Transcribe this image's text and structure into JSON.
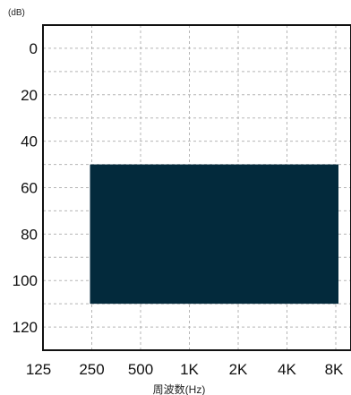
{
  "chart_data": {
    "type": "area",
    "ylabel": "(dB)",
    "xlabel": "周波数(Hz)",
    "categories": [
      "125",
      "250",
      "500",
      "1K",
      "2K",
      "4K",
      "8K"
    ],
    "y_ticks": [
      "0",
      "20",
      "40",
      "60",
      "80",
      "100",
      "120"
    ],
    "ylim": [
      -10,
      130
    ],
    "y_inverted": true,
    "grid": true,
    "regions": [
      {
        "x_start": "250",
        "x_end": "8K",
        "y_top": 50,
        "y_bottom": 110
      }
    ]
  },
  "colors": {
    "region_fill": "#032a3c",
    "frame": "#111111",
    "grid": "#b5b5b5"
  }
}
